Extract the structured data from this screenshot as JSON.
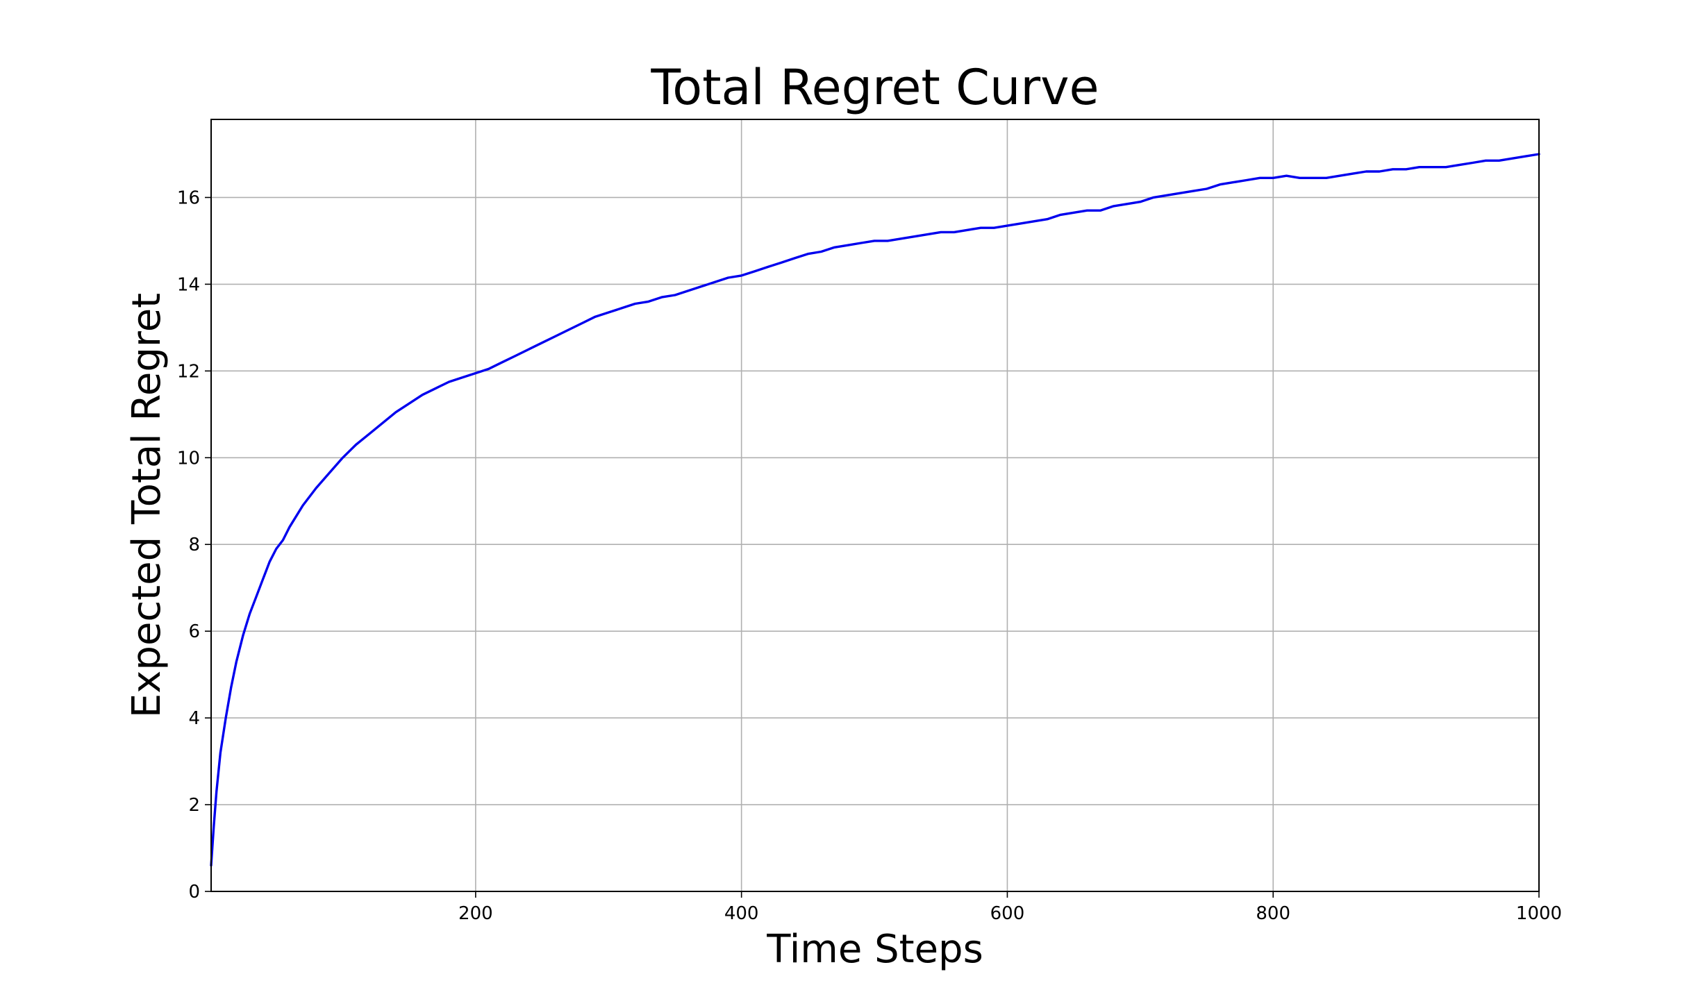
{
  "chart_data": {
    "type": "line",
    "title": "Total Regret Curve",
    "xlabel": "Time Steps",
    "ylabel": "Expected Total Regret",
    "xlim": [
      1,
      1000
    ],
    "ylim": [
      0,
      17.8
    ],
    "xticks": [
      200,
      400,
      600,
      800,
      1000
    ],
    "yticks": [
      0,
      2,
      4,
      6,
      8,
      10,
      12,
      14,
      16
    ],
    "grid": true,
    "legend": "none",
    "line_color": "#0000ee",
    "series": [
      {
        "x": [
          1,
          3,
          5,
          8,
          12,
          16,
          20,
          25,
          30,
          35,
          40,
          45,
          50,
          55,
          60,
          70,
          80,
          90,
          100,
          110,
          120,
          130,
          140,
          150,
          160,
          170,
          180,
          190,
          200,
          210,
          220,
          230,
          240,
          250,
          260,
          270,
          280,
          290,
          300,
          310,
          320,
          330,
          340,
          350,
          360,
          370,
          380,
          390,
          400,
          410,
          420,
          430,
          440,
          450,
          460,
          470,
          480,
          490,
          500,
          510,
          520,
          530,
          540,
          550,
          560,
          570,
          580,
          590,
          600,
          610,
          620,
          630,
          640,
          650,
          660,
          670,
          680,
          690,
          700,
          710,
          720,
          730,
          740,
          750,
          760,
          770,
          780,
          790,
          800,
          810,
          820,
          830,
          840,
          850,
          860,
          870,
          880,
          890,
          900,
          910,
          920,
          930,
          940,
          950,
          960,
          970,
          980,
          990,
          1000
        ],
        "y": [
          0.6,
          1.5,
          2.3,
          3.2,
          4.0,
          4.7,
          5.3,
          5.9,
          6.4,
          6.8,
          7.2,
          7.6,
          7.9,
          8.1,
          8.4,
          8.9,
          9.3,
          9.65,
          10.0,
          10.3,
          10.55,
          10.8,
          11.05,
          11.25,
          11.45,
          11.6,
          11.75,
          11.85,
          11.95,
          12.05,
          12.2,
          12.35,
          12.5,
          12.65,
          12.8,
          12.95,
          13.1,
          13.25,
          13.35,
          13.45,
          13.55,
          13.6,
          13.7,
          13.75,
          13.85,
          13.95,
          14.05,
          14.15,
          14.2,
          14.3,
          14.4,
          14.5,
          14.6,
          14.7,
          14.75,
          14.85,
          14.9,
          14.95,
          15.0,
          15.0,
          15.05,
          15.1,
          15.15,
          15.2,
          15.2,
          15.25,
          15.3,
          15.3,
          15.35,
          15.4,
          15.45,
          15.5,
          15.6,
          15.65,
          15.7,
          15.7,
          15.8,
          15.85,
          15.9,
          16.0,
          16.05,
          16.1,
          16.15,
          16.2,
          16.3,
          16.35,
          16.4,
          16.45,
          16.45,
          16.5,
          16.45,
          16.45,
          16.45,
          16.5,
          16.55,
          16.6,
          16.6,
          16.65,
          16.65,
          16.7,
          16.7,
          16.7,
          16.75,
          16.8,
          16.85,
          16.85,
          16.9,
          16.95,
          17.0
        ]
      }
    ]
  }
}
